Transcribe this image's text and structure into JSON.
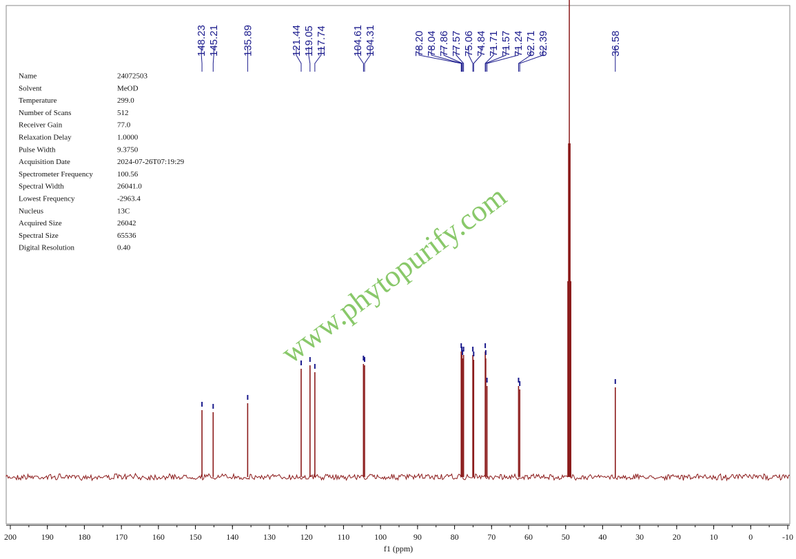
{
  "chart_data": {
    "type": "nmr",
    "xlabel": "f1 (ppm)",
    "xlim": [
      200,
      -10
    ],
    "xticks": [
      200,
      190,
      180,
      170,
      160,
      150,
      140,
      130,
      120,
      110,
      100,
      90,
      80,
      70,
      60,
      50,
      40,
      30,
      20,
      10,
      0,
      -10
    ],
    "peaks": [
      148.23,
      145.21,
      135.89,
      121.44,
      119.05,
      117.74,
      104.61,
      104.31,
      78.2,
      78.04,
      77.86,
      77.57,
      75.06,
      74.84,
      71.71,
      71.57,
      71.24,
      62.71,
      62.39,
      36.58
    ],
    "value_labels": [
      "148.23",
      "145.21",
      "135.89",
      "121.44",
      "119.05",
      "117.74",
      "104.61",
      "104.31",
      "78.20",
      "78.04",
      "77.86",
      "77.57",
      "75.06",
      "74.84",
      "71.71",
      "71.57",
      "71.24",
      "62.71",
      "62.39",
      "36.58"
    ],
    "intensities": [
      97,
      94,
      107,
      157,
      162,
      152,
      164,
      162,
      182,
      177,
      172,
      177,
      177,
      170,
      182,
      172,
      132,
      132,
      127,
      130
    ],
    "color": "#8b1a1a",
    "label_color": "#1a1a8c",
    "watermark": "www.phytopurify.com",
    "parameters": [
      [
        "Name",
        "24072503"
      ],
      [
        "Solvent",
        "MeOD"
      ],
      [
        "Temperature",
        "299.0"
      ],
      [
        "Number of Scans",
        "512"
      ],
      [
        "Receiver Gain",
        "77.0"
      ],
      [
        "Relaxation Delay",
        "1.0000"
      ],
      [
        "Pulse Width",
        "9.3750"
      ],
      [
        "Acquisition Date",
        "2024-07-26T07:19:29"
      ],
      [
        "Spectrometer Frequency",
        "100.56"
      ],
      [
        "Spectral Width",
        "26041.0"
      ],
      [
        "Lowest Frequency",
        "-2963.4"
      ],
      [
        "Nucleus",
        "13C"
      ],
      [
        "Acquired Size",
        "26042"
      ],
      [
        "Spectral Size",
        "65536"
      ],
      [
        "Digital Resolution",
        "0.40"
      ]
    ]
  }
}
